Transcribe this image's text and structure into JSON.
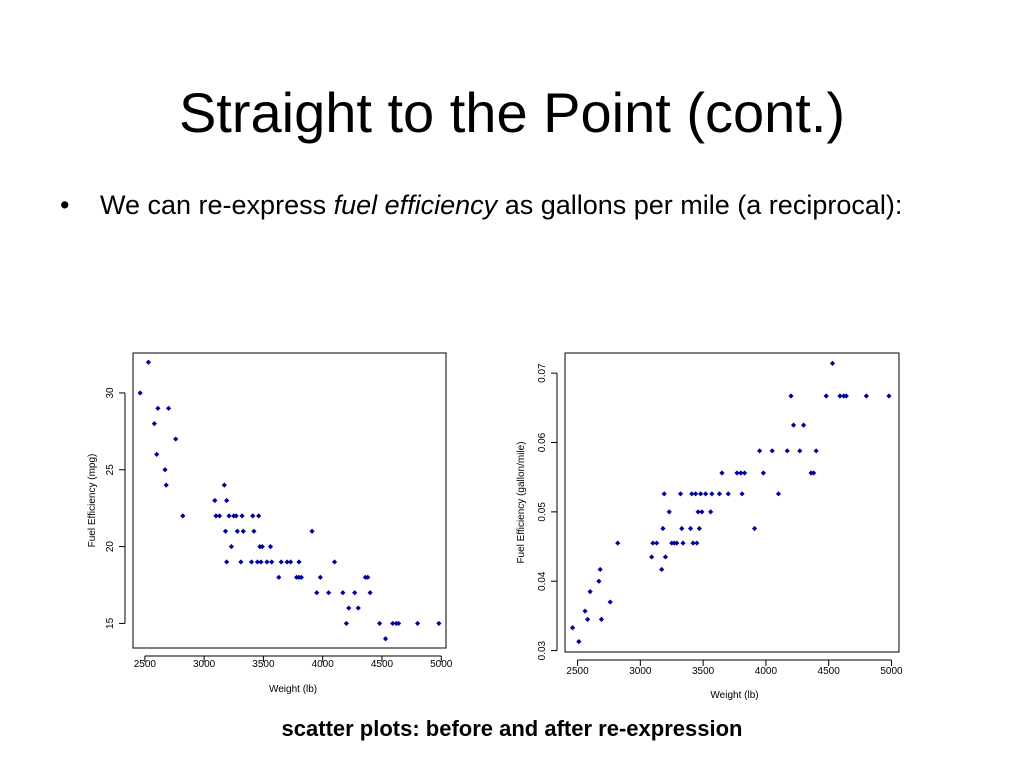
{
  "slide": {
    "title": "Straight to the Point (cont.)",
    "bullet_symbol": "•",
    "bullet_text_before": "We can re-express ",
    "bullet_text_italic": "fuel efficiency",
    "bullet_text_after": " as gallons per mile (a reciprocal):",
    "caption": "scatter plots: before and after re-expression"
  },
  "colors": {
    "point": "#00009c",
    "axis": "#000000"
  },
  "chart_data": [
    {
      "type": "scatter",
      "title": "",
      "xlabel": "Weight (lb)",
      "ylabel": "Fuel Efficiency (mpg)",
      "xlim": [
        2400,
        5040
      ],
      "ylim": [
        13.4,
        32.6
      ],
      "xticks": [
        2500,
        3000,
        3500,
        4000,
        4500,
        5000
      ],
      "xtick_labels": [
        "2500",
        "3000",
        "3500",
        "4000",
        "4500",
        "5000"
      ],
      "yticks": [
        15,
        20,
        25,
        30
      ],
      "ytick_labels": [
        "15",
        "20",
        "25",
        "30"
      ],
      "grid": false,
      "points": [
        {
          "x": 2460,
          "y": 30
        },
        {
          "x": 2530,
          "y": 32
        },
        {
          "x": 2580,
          "y": 28
        },
        {
          "x": 2600,
          "y": 26
        },
        {
          "x": 2610,
          "y": 29
        },
        {
          "x": 2670,
          "y": 25
        },
        {
          "x": 2680,
          "y": 24
        },
        {
          "x": 2700,
          "y": 29
        },
        {
          "x": 2760,
          "y": 27
        },
        {
          "x": 2820,
          "y": 22
        },
        {
          "x": 3090,
          "y": 23
        },
        {
          "x": 3100,
          "y": 22
        },
        {
          "x": 3130,
          "y": 22
        },
        {
          "x": 3170,
          "y": 24
        },
        {
          "x": 3180,
          "y": 21
        },
        {
          "x": 3190,
          "y": 19
        },
        {
          "x": 3190,
          "y": 23
        },
        {
          "x": 3210,
          "y": 22
        },
        {
          "x": 3230,
          "y": 20
        },
        {
          "x": 3250,
          "y": 22
        },
        {
          "x": 3270,
          "y": 22
        },
        {
          "x": 3280,
          "y": 21
        },
        {
          "x": 3310,
          "y": 19
        },
        {
          "x": 3320,
          "y": 22
        },
        {
          "x": 3330,
          "y": 21
        },
        {
          "x": 3400,
          "y": 19
        },
        {
          "x": 3410,
          "y": 22
        },
        {
          "x": 3420,
          "y": 21
        },
        {
          "x": 3450,
          "y": 19
        },
        {
          "x": 3460,
          "y": 22
        },
        {
          "x": 3470,
          "y": 20
        },
        {
          "x": 3480,
          "y": 19
        },
        {
          "x": 3490,
          "y": 20
        },
        {
          "x": 3530,
          "y": 19
        },
        {
          "x": 3560,
          "y": 20
        },
        {
          "x": 3570,
          "y": 19
        },
        {
          "x": 3630,
          "y": 18
        },
        {
          "x": 3650,
          "y": 19
        },
        {
          "x": 3700,
          "y": 19
        },
        {
          "x": 3730,
          "y": 19
        },
        {
          "x": 3780,
          "y": 18
        },
        {
          "x": 3800,
          "y": 18
        },
        {
          "x": 3820,
          "y": 18
        },
        {
          "x": 3800,
          "y": 19
        },
        {
          "x": 3910,
          "y": 21
        },
        {
          "x": 3950,
          "y": 17
        },
        {
          "x": 3980,
          "y": 18
        },
        {
          "x": 4050,
          "y": 17
        },
        {
          "x": 4100,
          "y": 19
        },
        {
          "x": 4170,
          "y": 17
        },
        {
          "x": 4200,
          "y": 15
        },
        {
          "x": 4220,
          "y": 16
        },
        {
          "x": 4270,
          "y": 17
        },
        {
          "x": 4300,
          "y": 16
        },
        {
          "x": 4360,
          "y": 18
        },
        {
          "x": 4380,
          "y": 18
        },
        {
          "x": 4400,
          "y": 17
        },
        {
          "x": 4480,
          "y": 15
        },
        {
          "x": 4530,
          "y": 14
        },
        {
          "x": 4590,
          "y": 15
        },
        {
          "x": 4620,
          "y": 15
        },
        {
          "x": 4640,
          "y": 15
        },
        {
          "x": 4800,
          "y": 15
        },
        {
          "x": 4980,
          "y": 15
        }
      ]
    },
    {
      "type": "scatter",
      "title": "",
      "xlabel": "Weight (lb)",
      "ylabel": "Fuel Efficiency (gallon/mile)",
      "xlim": [
        2400,
        5060
      ],
      "ylim": [
        0.0298,
        0.0729
      ],
      "xticks": [
        2500,
        3000,
        3500,
        4000,
        4500,
        5000
      ],
      "xtick_labels": [
        "2500",
        "3000",
        "3500",
        "4000",
        "4500",
        "5000"
      ],
      "yticks": [
        0.03,
        0.04,
        0.05,
        0.06,
        0.07
      ],
      "ytick_labels": [
        "0.03",
        "0.04",
        "0.05",
        "0.06",
        "0.07"
      ],
      "grid": false,
      "points": [
        {
          "x": 2460,
          "y": 0.0333
        },
        {
          "x": 2510,
          "y": 0.0313
        },
        {
          "x": 2560,
          "y": 0.0357
        },
        {
          "x": 2580,
          "y": 0.0345
        },
        {
          "x": 2600,
          "y": 0.0385
        },
        {
          "x": 2670,
          "y": 0.04
        },
        {
          "x": 2680,
          "y": 0.0417
        },
        {
          "x": 2690,
          "y": 0.0345
        },
        {
          "x": 2760,
          "y": 0.037
        },
        {
          "x": 2820,
          "y": 0.0455
        },
        {
          "x": 3090,
          "y": 0.0435
        },
        {
          "x": 3100,
          "y": 0.0455
        },
        {
          "x": 3130,
          "y": 0.0455
        },
        {
          "x": 3170,
          "y": 0.0417
        },
        {
          "x": 3180,
          "y": 0.0476
        },
        {
          "x": 3190,
          "y": 0.0526
        },
        {
          "x": 3200,
          "y": 0.0435
        },
        {
          "x": 3230,
          "y": 0.05
        },
        {
          "x": 3250,
          "y": 0.0455
        },
        {
          "x": 3270,
          "y": 0.0455
        },
        {
          "x": 3290,
          "y": 0.0455
        },
        {
          "x": 3320,
          "y": 0.0526
        },
        {
          "x": 3330,
          "y": 0.0476
        },
        {
          "x": 3340,
          "y": 0.0455
        },
        {
          "x": 3400,
          "y": 0.0476
        },
        {
          "x": 3410,
          "y": 0.0526
        },
        {
          "x": 3420,
          "y": 0.0455
        },
        {
          "x": 3440,
          "y": 0.0526
        },
        {
          "x": 3450,
          "y": 0.0455
        },
        {
          "x": 3460,
          "y": 0.05
        },
        {
          "x": 3470,
          "y": 0.0476
        },
        {
          "x": 3480,
          "y": 0.0526
        },
        {
          "x": 3490,
          "y": 0.05
        },
        {
          "x": 3520,
          "y": 0.0526
        },
        {
          "x": 3560,
          "y": 0.05
        },
        {
          "x": 3570,
          "y": 0.0526
        },
        {
          "x": 3630,
          "y": 0.0526
        },
        {
          "x": 3650,
          "y": 0.0556
        },
        {
          "x": 3700,
          "y": 0.0526
        },
        {
          "x": 3770,
          "y": 0.0556
        },
        {
          "x": 3800,
          "y": 0.0556
        },
        {
          "x": 3810,
          "y": 0.0526
        },
        {
          "x": 3830,
          "y": 0.0556
        },
        {
          "x": 3910,
          "y": 0.0476
        },
        {
          "x": 3950,
          "y": 0.0588
        },
        {
          "x": 3980,
          "y": 0.0556
        },
        {
          "x": 4050,
          "y": 0.0588
        },
        {
          "x": 4100,
          "y": 0.0526
        },
        {
          "x": 4170,
          "y": 0.0588
        },
        {
          "x": 4200,
          "y": 0.0667
        },
        {
          "x": 4220,
          "y": 0.0625
        },
        {
          "x": 4270,
          "y": 0.0588
        },
        {
          "x": 4300,
          "y": 0.0625
        },
        {
          "x": 4360,
          "y": 0.0556
        },
        {
          "x": 4380,
          "y": 0.0556
        },
        {
          "x": 4400,
          "y": 0.0588
        },
        {
          "x": 4480,
          "y": 0.0667
        },
        {
          "x": 4530,
          "y": 0.0714
        },
        {
          "x": 4590,
          "y": 0.0667
        },
        {
          "x": 4620,
          "y": 0.0667
        },
        {
          "x": 4640,
          "y": 0.0667
        },
        {
          "x": 4800,
          "y": 0.0667
        },
        {
          "x": 4980,
          "y": 0.0667
        }
      ]
    }
  ]
}
